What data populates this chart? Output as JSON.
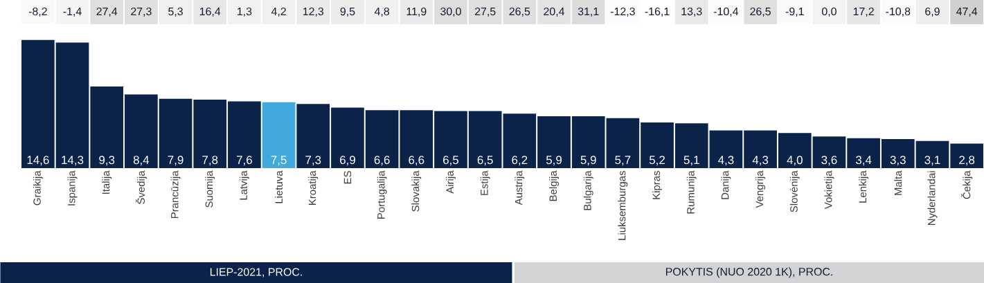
{
  "chart_data": [
    {
      "type": "heatmap",
      "xlabel": "POKYTIS (NUO 2020 1K), PROC.",
      "categories": [
        null,
        null,
        null,
        null,
        null,
        null,
        null,
        null,
        null,
        null,
        null,
        null,
        null,
        null,
        null,
        null,
        null,
        null,
        null,
        null,
        null,
        null,
        null,
        null,
        null,
        null,
        null,
        null
      ],
      "y_categories": [
        null
      ],
      "cells": [
        [
          -8.2,
          -1.4,
          27.4,
          27.3,
          5.3,
          16.4,
          1.3,
          4.2,
          12.3,
          9.5,
          4.8,
          11.9,
          30.0,
          27.5,
          26.5,
          20.4,
          31.1,
          -12.3,
          -16.1,
          13.3,
          -10.4,
          26.5,
          -9.1,
          0.0,
          17.2,
          -10.8,
          6.9,
          47.4
        ]
      ],
      "cell_labels": [
        [
          "-8,2",
          "-1,4",
          "27,4",
          "27,3",
          "5,3",
          "16,4",
          "1,3",
          "4,2",
          "12,3",
          "9,5",
          "4,8",
          "11,9",
          "30,0",
          "27,5",
          "26,5",
          "20,4",
          "31,1",
          "-12,3",
          "-16,1",
          "13,3",
          "-10,4",
          "26,5",
          "-9,1",
          "0,0",
          "17,2",
          "-10,8",
          "6,9",
          "47,4"
        ]
      ]
    },
    {
      "type": "bar",
      "xlabel": "LIEP-2021, PROC.",
      "categories": [
        "Graikija",
        "Ispanija",
        "Italija",
        "Švedija",
        "Prancūzija",
        "Suomija",
        "Latvija",
        "Lietuva",
        "Kroatija",
        "ES",
        "Portugalija",
        "Slovakija",
        "Airija",
        "Estija",
        "Austrija",
        "Belgija",
        "Bulgarija",
        "Liuksemburgas",
        "Kipras",
        "Rumunija",
        "Danija",
        "Vengrija",
        "Slovėnija",
        "Vokietija",
        "Lenkija",
        "Malta",
        "Nyderlandai",
        "Čekija"
      ],
      "values": [
        14.6,
        14.3,
        9.3,
        8.4,
        7.9,
        7.8,
        7.6,
        7.5,
        7.3,
        6.9,
        6.6,
        6.6,
        6.5,
        6.5,
        6.2,
        5.9,
        5.9,
        5.7,
        5.2,
        5.1,
        4.3,
        4.3,
        4.0,
        3.6,
        3.4,
        3.3,
        3.1,
        2.8
      ],
      "colors": [
        "#0b2249",
        "#0b2249",
        "#0b2249",
        "#0b2249",
        "#0b2249",
        "#0b2249",
        "#0b2249",
        "#41a9dc",
        "#0b2249",
        "#0b2249",
        "#0b2249",
        "#0b2249",
        "#0b2249",
        "#0b2249",
        "#0b2249",
        "#0b2249",
        "#0b2249",
        "#0b2249",
        "#0b2249",
        "#0b2249",
        "#0b2249",
        "#0b2249",
        "#0b2249",
        "#0b2249",
        "#0b2249",
        "#0b2249",
        "#0b2249",
        "#0b2249"
      ],
      "value_labels": [
        "14,6",
        "14,3",
        "9,3",
        "8,4",
        "7,9",
        "7,8",
        "7,6",
        "7,5",
        "7,3",
        "6,9",
        "6,6",
        "6,6",
        "6,5",
        "6,5",
        "6,2",
        "5,9",
        "5,9",
        "5,7",
        "5,2",
        "5,1",
        "4,3",
        "4,3",
        "4,0",
        "3,6",
        "3,4",
        "3,3",
        "3,1",
        "2,8"
      ]
    }
  ]
}
